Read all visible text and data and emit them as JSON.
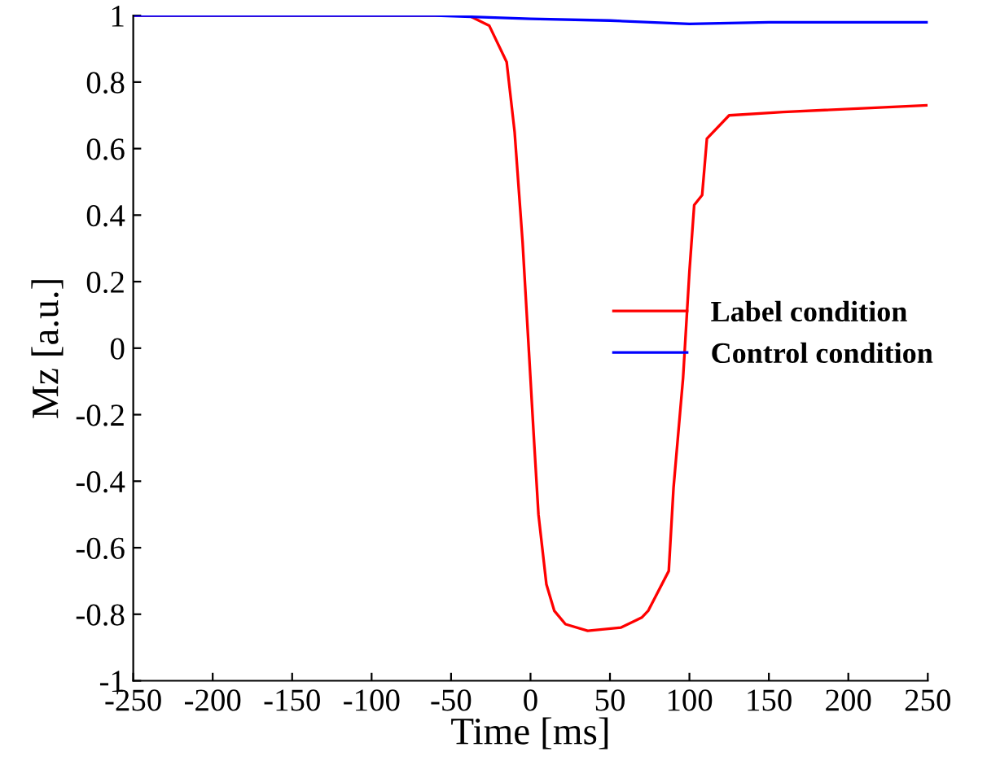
{
  "chart_data": {
    "type": "line",
    "xlabel": "Time [ms]",
    "ylabel": "Mz [a.u.]",
    "xlim": [
      -250,
      250
    ],
    "xticks": [
      -250,
      -200,
      -150,
      -100,
      -50,
      0,
      50,
      100,
      150,
      200,
      250
    ],
    "ylim": [
      -1,
      1
    ],
    "yticks": [
      -1,
      -0.8,
      -0.6,
      -0.4,
      -0.2,
      0,
      0.2,
      0.4,
      0.6,
      0.8,
      1
    ],
    "grid": false,
    "legend": "right",
    "marker": "none",
    "line_style": "solid",
    "series": [
      {
        "name": "Label condition",
        "color": "#ff0000",
        "x": [
          -250,
          -39,
          -26,
          -15,
          -10,
          -5,
          -1,
          2,
          5,
          10,
          15,
          22,
          36,
          57,
          70,
          74,
          87,
          90,
          96,
          100,
          103,
          108,
          111,
          125,
          159,
          249
        ],
        "values": [
          1,
          1,
          0.97,
          0.86,
          0.65,
          0.32,
          -0.01,
          -0.26,
          -0.5,
          -0.71,
          -0.79,
          -0.83,
          -0.85,
          -0.84,
          -0.81,
          -0.79,
          -0.67,
          -0.42,
          -0.09,
          0.23,
          0.43,
          0.46,
          0.63,
          0.7,
          0.71,
          0.73
        ]
      },
      {
        "name": "Control condition",
        "color": "#0000ff",
        "x": [
          -250,
          -60,
          0,
          50,
          100,
          150,
          250
        ],
        "values": [
          1,
          1,
          0.99,
          0.985,
          0.975,
          0.98,
          0.98
        ]
      }
    ]
  }
}
